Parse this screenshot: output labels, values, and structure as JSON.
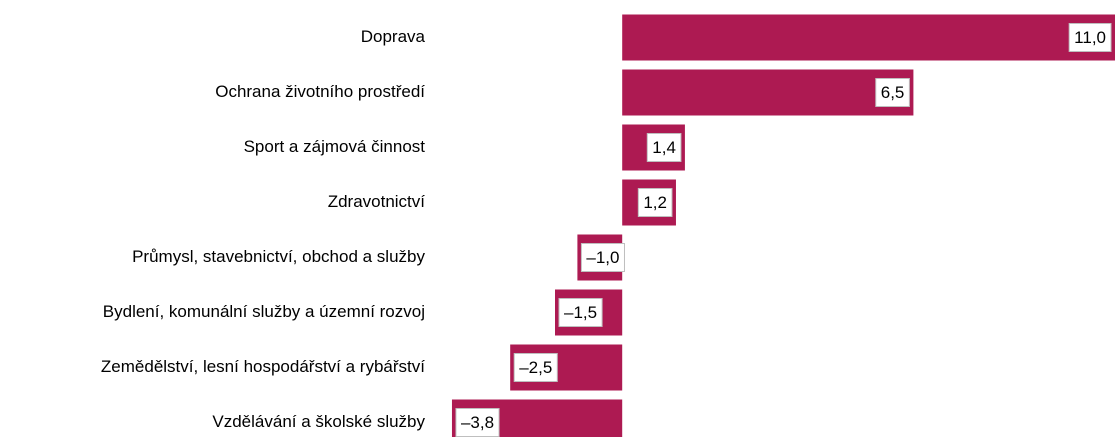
{
  "chart_data": {
    "type": "barh",
    "categories": [
      "Doprava",
      "Ochrana životního prostředí",
      "Sport a zájmová činnost",
      "Zdravotnictví",
      "Průmysl, stavebnictví, obchod a služby",
      "Bydlení, komunální služby a územní rozvoj",
      "Zemědělství, lesní hospodářství a rybářství",
      "Vzdělávání a školské služby"
    ],
    "values": [
      11.0,
      6.5,
      1.4,
      1.2,
      -1.0,
      -1.5,
      -2.5,
      -3.8
    ],
    "value_labels": [
      "11,0",
      "6,5",
      "1,4",
      "1,2",
      "–1,0",
      "–1,5",
      "–2,5",
      "–3,8"
    ],
    "color": "#ad1a52",
    "negative_label_color": "#ff0000",
    "xlim": [
      -4,
      11
    ]
  }
}
